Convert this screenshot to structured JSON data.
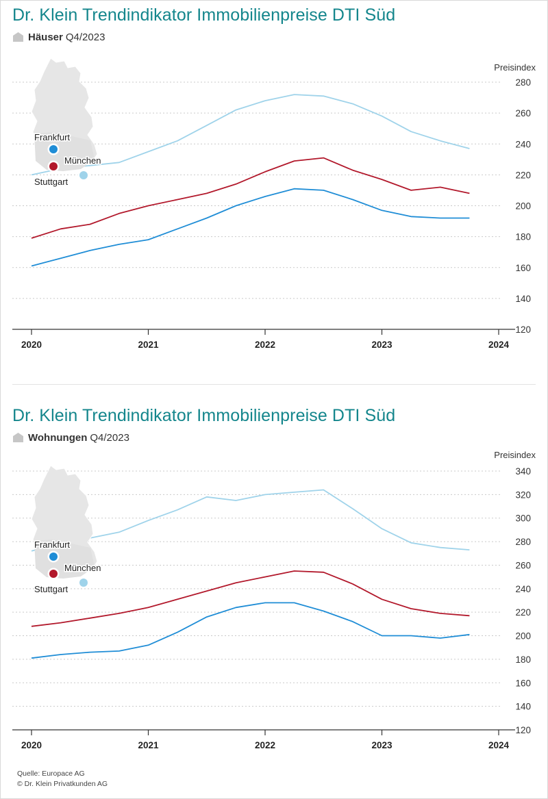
{
  "chart_data": [
    {
      "type": "line",
      "title": "Dr. Klein Trendindikator Immobilienpreise DTI Süd",
      "subtitle_strong": "Häuser",
      "subtitle_period": "Q4/2023",
      "ylabel": "Preisindex",
      "xlabel": "",
      "ylim": [
        120,
        280
      ],
      "yticks": [
        120,
        140,
        160,
        180,
        200,
        220,
        240,
        260,
        280
      ],
      "xlim": [
        2020,
        2024
      ],
      "xticks": [
        "2020",
        "2021",
        "2022",
        "2023",
        "2024"
      ],
      "grid": true,
      "legend": "map-inset-top-left",
      "x": [
        2020.0,
        2020.25,
        2020.5,
        2020.75,
        2021.0,
        2021.25,
        2021.5,
        2021.75,
        2022.0,
        2022.25,
        2022.5,
        2022.75,
        2023.0,
        2023.25,
        2023.5,
        2023.75
      ],
      "series": [
        {
          "name": "München",
          "color": "#9fd3ea",
          "values": [
            220,
            224,
            226,
            228,
            235,
            242,
            252,
            262,
            268,
            272,
            271,
            266,
            258,
            248,
            242,
            237
          ]
        },
        {
          "name": "Stuttgart",
          "color": "#b2182b",
          "values": [
            179,
            185,
            188,
            195,
            200,
            204,
            208,
            214,
            222,
            229,
            231,
            223,
            217,
            210,
            212,
            208
          ]
        },
        {
          "name": "Frankfurt",
          "color": "#1f8dd6",
          "values": [
            161,
            166,
            171,
            175,
            178,
            185,
            192,
            200,
            206,
            211,
            210,
            204,
            197,
            193,
            192,
            192
          ]
        }
      ]
    },
    {
      "type": "line",
      "title": "Dr. Klein Trendindikator Immobilienpreise DTI Süd",
      "subtitle_strong": "Wohnungen",
      "subtitle_period": "Q4/2023",
      "ylabel": "Preisindex",
      "xlabel": "",
      "ylim": [
        120,
        340
      ],
      "yticks": [
        120,
        140,
        160,
        180,
        200,
        220,
        240,
        260,
        280,
        300,
        320,
        340
      ],
      "xlim": [
        2020,
        2024
      ],
      "xticks": [
        "2020",
        "2021",
        "2022",
        "2023",
        "2024"
      ],
      "grid": true,
      "legend": "map-inset-top-left",
      "x": [
        2020.0,
        2020.25,
        2020.5,
        2020.75,
        2021.0,
        2021.25,
        2021.5,
        2021.75,
        2022.0,
        2022.25,
        2022.5,
        2022.75,
        2023.0,
        2023.25,
        2023.5,
        2023.75
      ],
      "series": [
        {
          "name": "München",
          "color": "#9fd3ea",
          "values": [
            272,
            278,
            283,
            288,
            298,
            307,
            318,
            315,
            320,
            322,
            324,
            308,
            291,
            279,
            275,
            273
          ]
        },
        {
          "name": "Stuttgart",
          "color": "#b2182b",
          "values": [
            208,
            211,
            215,
            219,
            224,
            231,
            238,
            245,
            250,
            255,
            254,
            244,
            231,
            223,
            219,
            217
          ]
        },
        {
          "name": "Frankfurt",
          "color": "#1f8dd6",
          "values": [
            181,
            184,
            186,
            187,
            192,
            203,
            216,
            224,
            228,
            228,
            221,
            212,
            200,
            200,
            198,
            201
          ]
        }
      ]
    }
  ],
  "legend_labels": {
    "frankfurt": "Frankfurt",
    "muenchen": "München",
    "stuttgart": "Stuttgart"
  },
  "footer": {
    "source": "Quelle: Europace AG",
    "copyright": "© Dr. Klein Privatkunden AG"
  },
  "colors": {
    "title": "#14868c",
    "muenchen": "#9fd3ea",
    "stuttgart": "#b2182b",
    "frankfurt": "#1f8dd6",
    "map": "#e6e6e6"
  }
}
